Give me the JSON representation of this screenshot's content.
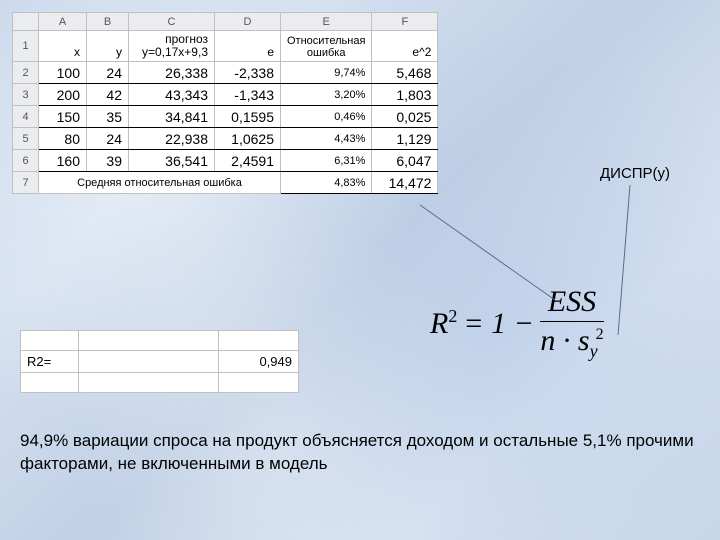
{
  "bg_color": "#cdd9eb",
  "spreadsheet": {
    "col_letters": [
      "A",
      "B",
      "C",
      "D",
      "E",
      "F"
    ],
    "headers": {
      "x": "x",
      "y": "y",
      "forecast_top": "прогноз",
      "forecast_bot": "y=0,17x+9,3",
      "e": "e",
      "relerr": "Относительная ошибка",
      "e2": "e^2"
    },
    "rows": [
      {
        "n": "2",
        "x": "100",
        "y": "24",
        "c": "26,338",
        "d": "-2,338",
        "e": "9,74%",
        "f": "5,468"
      },
      {
        "n": "3",
        "x": "200",
        "y": "42",
        "c": "43,343",
        "d": "-1,343",
        "e": "3,20%",
        "f": "1,803"
      },
      {
        "n": "4",
        "x": "150",
        "y": "35",
        "c": "34,841",
        "d": "0,1595",
        "e": "0,46%",
        "f": "0,025"
      },
      {
        "n": "5",
        "x": "80",
        "y": "24",
        "c": "22,938",
        "d": "1,0625",
        "e": "4,43%",
        "f": "1,129"
      },
      {
        "n": "6",
        "x": "160",
        "y": "39",
        "c": "36,541",
        "d": "2,4591",
        "e": "6,31%",
        "f": "6,047"
      }
    ],
    "summary_label": "Средняя относительная ошибка",
    "summary_e": "4,83%",
    "summary_f": "14,472"
  },
  "r2": {
    "label": "R2=",
    "value": "0,949"
  },
  "formula": {
    "lhs": "R",
    "eq": "= 1 −",
    "num": "ESS",
    "den_n": "n",
    "den_s": "s",
    "den_sub": "y"
  },
  "dispr": "ДИСПР(y)",
  "explanation": "94,9% вариации спроса на продукт объясняется доходом и остальные 5,1% прочими факторами, не включенными в модель"
}
